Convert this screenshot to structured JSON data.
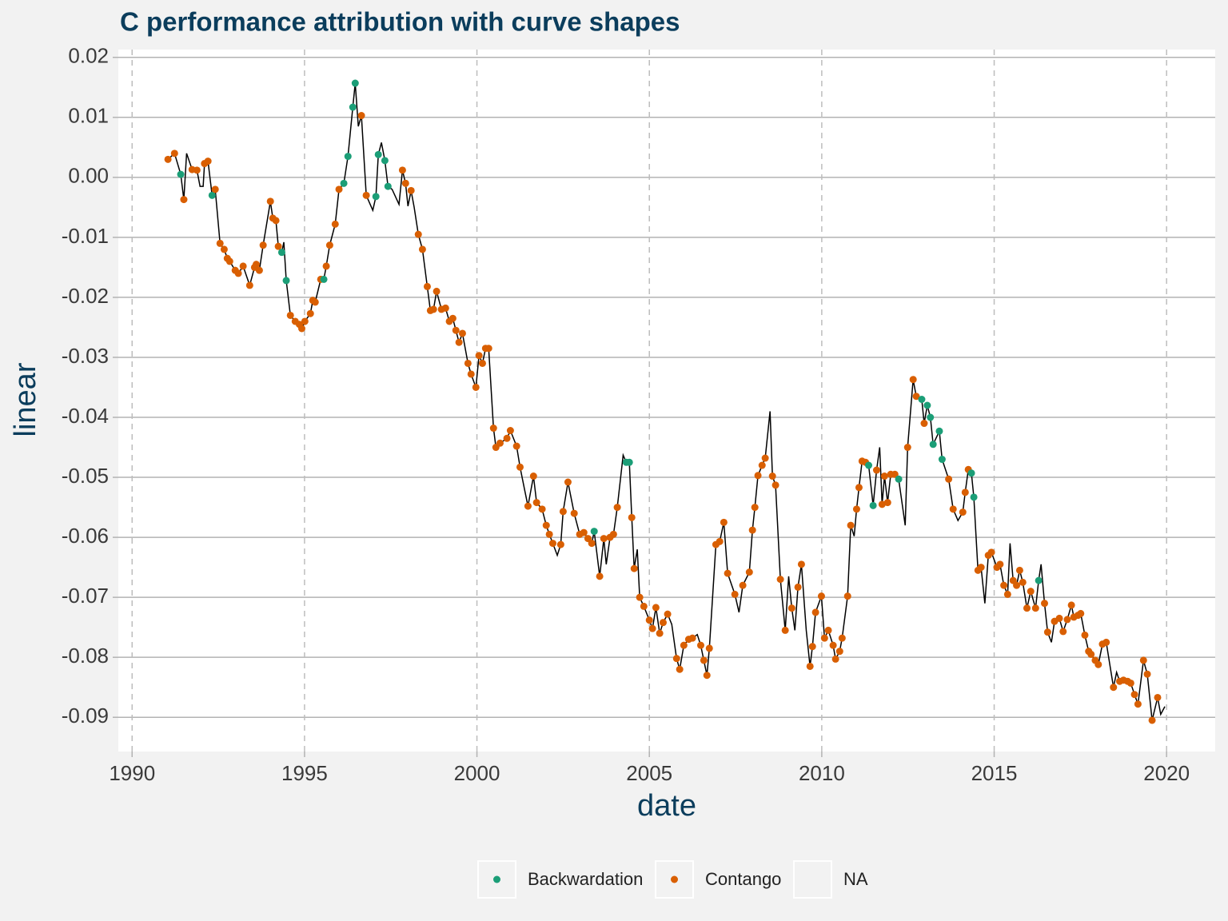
{
  "chart_data": {
    "type": "line",
    "title": "C  performance attribution with curve shapes",
    "x_label": "date",
    "y_label": "linear",
    "line_color": "#000000",
    "x": [
      1991.04,
      1991.23,
      1991.41,
      1991.5,
      1991.58,
      1991.74,
      1991.88,
      1991.97,
      1992.06,
      1992.1,
      1992.2,
      1992.32,
      1992.41,
      1992.55,
      1992.67,
      1992.76,
      1992.83,
      1992.99,
      1993.08,
      1993.22,
      1993.41,
      1993.55,
      1993.6,
      1993.69,
      1993.8,
      1994.01,
      1994.08,
      1994.17,
      1994.24,
      1994.34,
      1994.4,
      1994.47,
      1994.59,
      1994.73,
      1994.85,
      1994.92,
      1995.01,
      1995.17,
      1995.24,
      1995.31,
      1995.47,
      1995.56,
      1995.63,
      1995.73,
      1995.89,
      1996.0,
      1996.14,
      1996.26,
      1996.4,
      1996.47,
      1996.56,
      1996.65,
      1996.79,
      1996.98,
      1997.07,
      1997.14,
      1997.23,
      1997.33,
      1997.42,
      1997.54,
      1997.74,
      1997.84,
      1997.93,
      1998.0,
      1998.09,
      1998.18,
      1998.3,
      1998.42,
      1998.56,
      1998.65,
      1998.74,
      1998.83,
      1998.97,
      1999.09,
      1999.2,
      1999.3,
      1999.39,
      1999.48,
      1999.58,
      1999.74,
      1999.83,
      1999.97,
      2000.06,
      2000.16,
      2000.25,
      2000.34,
      2000.48,
      2000.55,
      2000.67,
      2000.87,
      2000.97,
      2001.15,
      2001.25,
      2001.38,
      2001.48,
      2001.64,
      2001.73,
      2001.89,
      2002.01,
      2002.1,
      2002.2,
      2002.33,
      2002.43,
      2002.5,
      2002.64,
      2002.82,
      2002.98,
      2003.1,
      2003.22,
      2003.33,
      2003.4,
      2003.56,
      2003.68,
      2003.75,
      2003.86,
      2003.96,
      2004.07,
      2004.24,
      2004.33,
      2004.42,
      2004.49,
      2004.56,
      2004.65,
      2004.72,
      2004.84,
      2005.0,
      2005.09,
      2005.19,
      2005.3,
      2005.4,
      2005.53,
      2005.65,
      2005.79,
      2005.88,
      2006.0,
      2006.14,
      2006.25,
      2006.39,
      2006.49,
      2006.58,
      2006.67,
      2006.74,
      2006.93,
      2007.04,
      2007.16,
      2007.27,
      2007.48,
      2007.6,
      2007.71,
      2007.9,
      2007.99,
      2008.06,
      2008.15,
      2008.27,
      2008.36,
      2008.5,
      2008.57,
      2008.66,
      2008.8,
      2008.94,
      2009.04,
      2009.13,
      2009.22,
      2009.31,
      2009.41,
      2009.55,
      2009.66,
      2009.73,
      2009.82,
      2009.99,
      2010.08,
      2010.19,
      2010.33,
      2010.4,
      2010.52,
      2010.59,
      2010.75,
      2010.84,
      2010.94,
      2011.01,
      2011.08,
      2011.17,
      2011.27,
      2011.36,
      2011.49,
      2011.59,
      2011.68,
      2011.75,
      2011.82,
      2011.91,
      2012.0,
      2012.12,
      2012.23,
      2012.42,
      2012.49,
      2012.65,
      2012.74,
      2012.9,
      2012.97,
      2013.06,
      2013.15,
      2013.23,
      2013.41,
      2013.49,
      2013.68,
      2013.81,
      2013.95,
      2014.09,
      2014.16,
      2014.25,
      2014.34,
      2014.41,
      2014.53,
      2014.62,
      2014.73,
      2014.83,
      2014.92,
      2015.08,
      2015.17,
      2015.28,
      2015.39,
      2015.46,
      2015.55,
      2015.65,
      2015.74,
      2015.83,
      2015.95,
      2016.06,
      2016.2,
      2016.29,
      2016.36,
      2016.46,
      2016.55,
      2016.66,
      2016.75,
      2016.89,
      2017.0,
      2017.12,
      2017.24,
      2017.31,
      2017.43,
      2017.51,
      2017.63,
      2017.74,
      2017.81,
      2017.93,
      2018.02,
      2018.14,
      2018.25,
      2018.46,
      2018.55,
      2018.64,
      2018.75,
      2018.87,
      2018.96,
      2019.07,
      2019.17,
      2019.33,
      2019.44,
      2019.58,
      2019.74,
      2019.83,
      2019.95
    ],
    "values": [
      0.003,
      0.004,
      0.0005,
      -0.0037,
      0.004,
      0.0013,
      0.0012,
      -0.0015,
      -0.0015,
      0.0023,
      0.0027,
      -0.003,
      -0.002,
      -0.011,
      -0.012,
      -0.0135,
      -0.014,
      -0.0155,
      -0.016,
      -0.0148,
      -0.018,
      -0.015,
      -0.0145,
      -0.0155,
      -0.0113,
      -0.004,
      -0.0068,
      -0.0072,
      -0.0115,
      -0.0125,
      -0.0108,
      -0.0172,
      -0.023,
      -0.024,
      -0.0245,
      -0.0252,
      -0.024,
      -0.0227,
      -0.0205,
      -0.0208,
      -0.017,
      -0.017,
      -0.0148,
      -0.0113,
      -0.0078,
      -0.002,
      -0.001,
      0.0035,
      0.0117,
      0.0157,
      0.0085,
      0.0103,
      -0.003,
      -0.0055,
      -0.0032,
      0.0038,
      0.0058,
      0.0028,
      -0.0015,
      -0.002,
      -0.0045,
      0.0012,
      -0.001,
      -0.0048,
      -0.0022,
      -0.005,
      -0.0095,
      -0.012,
      -0.0182,
      -0.0222,
      -0.022,
      -0.019,
      -0.022,
      -0.0218,
      -0.024,
      -0.0235,
      -0.0255,
      -0.0275,
      -0.026,
      -0.031,
      -0.0328,
      -0.035,
      -0.0297,
      -0.031,
      -0.0285,
      -0.0285,
      -0.0418,
      -0.045,
      -0.0443,
      -0.0435,
      -0.0422,
      -0.0448,
      -0.0483,
      -0.052,
      -0.0548,
      -0.0498,
      -0.0542,
      -0.0553,
      -0.058,
      -0.0595,
      -0.061,
      -0.063,
      -0.0612,
      -0.0557,
      -0.0508,
      -0.056,
      -0.0595,
      -0.0592,
      -0.0602,
      -0.061,
      -0.059,
      -0.0665,
      -0.0602,
      -0.0645,
      -0.06,
      -0.0595,
      -0.055,
      -0.0463,
      -0.0475,
      -0.0475,
      -0.0567,
      -0.0652,
      -0.062,
      -0.07,
      -0.0715,
      -0.0738,
      -0.0752,
      -0.0717,
      -0.076,
      -0.0742,
      -0.0728,
      -0.0745,
      -0.0802,
      -0.082,
      -0.078,
      -0.077,
      -0.0768,
      -0.0762,
      -0.078,
      -0.0805,
      -0.083,
      -0.0785,
      -0.0612,
      -0.0607,
      -0.0575,
      -0.066,
      -0.0695,
      -0.0725,
      -0.068,
      -0.0658,
      -0.0588,
      -0.055,
      -0.0497,
      -0.048,
      -0.0468,
      -0.039,
      -0.0498,
      -0.0513,
      -0.067,
      -0.0755,
      -0.0665,
      -0.0718,
      -0.0755,
      -0.0683,
      -0.0645,
      -0.0755,
      -0.0815,
      -0.0782,
      -0.0725,
      -0.0698,
      -0.0768,
      -0.0755,
      -0.078,
      -0.0803,
      -0.079,
      -0.0768,
      -0.0698,
      -0.058,
      -0.0598,
      -0.0553,
      -0.0517,
      -0.0473,
      -0.0475,
      -0.048,
      -0.0547,
      -0.0488,
      -0.045,
      -0.0545,
      -0.0498,
      -0.0542,
      -0.0495,
      -0.0495,
      -0.0503,
      -0.058,
      -0.045,
      -0.0337,
      -0.0365,
      -0.037,
      -0.041,
      -0.038,
      -0.04,
      -0.0445,
      -0.0423,
      -0.047,
      -0.0503,
      -0.0553,
      -0.0572,
      -0.0558,
      -0.0525,
      -0.0487,
      -0.0493,
      -0.0533,
      -0.0655,
      -0.065,
      -0.071,
      -0.063,
      -0.0625,
      -0.065,
      -0.0645,
      -0.068,
      -0.0695,
      -0.061,
      -0.0672,
      -0.068,
      -0.0655,
      -0.0675,
      -0.0718,
      -0.069,
      -0.0718,
      -0.0672,
      -0.0645,
      -0.071,
      -0.0758,
      -0.0775,
      -0.074,
      -0.0735,
      -0.0757,
      -0.0737,
      -0.0713,
      -0.0733,
      -0.073,
      -0.0727,
      -0.0763,
      -0.079,
      -0.0795,
      -0.0805,
      -0.0812,
      -0.0778,
      -0.0775,
      -0.085,
      -0.0825,
      -0.084,
      -0.0838,
      -0.084,
      -0.0843,
      -0.0862,
      -0.0878,
      -0.0805,
      -0.0828,
      -0.0905,
      -0.0867,
      -0.0895,
      -0.0882
    ],
    "shape": [
      "Contango",
      "Contango",
      "Backwardation",
      "Contango",
      "NA",
      "Contango",
      "Contango",
      "NA",
      "NA",
      "Contango",
      "Contango",
      "Backwardation",
      "Contango",
      "Contango",
      "Contango",
      "Contango",
      "Contango",
      "Contango",
      "Contango",
      "Contango",
      "Contango",
      "Contango",
      "Contango",
      "Contango",
      "Contango",
      "Contango",
      "Contango",
      "Contango",
      "Contango",
      "Backwardation",
      "NA",
      "Backwardation",
      "Contango",
      "Contango",
      "Contango",
      "Contango",
      "Contango",
      "Contango",
      "Contango",
      "Contango",
      "Contango",
      "Backwardation",
      "Contango",
      "Contango",
      "Contango",
      "Contango",
      "Backwardation",
      "Backwardation",
      "Backwardation",
      "Backwardation",
      "NA",
      "Contango",
      "Contango",
      "NA",
      "Backwardation",
      "Backwardation",
      "NA",
      "Backwardation",
      "Backwardation",
      "NA",
      "NA",
      "Contango",
      "Contango",
      "NA",
      "Contango",
      "NA",
      "Contango",
      "Contango",
      "Contango",
      "Contango",
      "Contango",
      "Contango",
      "Contango",
      "Contango",
      "Contango",
      "Contango",
      "Contango",
      "Contango",
      "Contango",
      "Contango",
      "Contango",
      "Contango",
      "Contango",
      "Contango",
      "Contango",
      "Contango",
      "Contango",
      "Contango",
      "Contango",
      "Contango",
      "Contango",
      "Contango",
      "Contango",
      "NA",
      "Contango",
      "Contango",
      "Contango",
      "Contango",
      "Contango",
      "Contango",
      "Contango",
      "NA",
      "Contango",
      "Contango",
      "Contango",
      "Contango",
      "Contango",
      "Contango",
      "Contango",
      "Contango",
      "Backwardation",
      "Contango",
      "Contango",
      "NA",
      "Contango",
      "Contango",
      "Contango",
      "NA",
      "Backwardation",
      "Backwardation",
      "Contango",
      "Contango",
      "NA",
      "Contango",
      "Contango",
      "Contango",
      "Contango",
      "Contango",
      "Contango",
      "Contango",
      "Contango",
      "NA",
      "Contango",
      "Contango",
      "Contango",
      "Contango",
      "Contango",
      "NA",
      "Contango",
      "Contango",
      "Contango",
      "Contango",
      "Contango",
      "Contango",
      "Contango",
      "Contango",
      "Contango",
      "NA",
      "Contango",
      "Contango",
      "Contango",
      "Contango",
      "Contango",
      "Contango",
      "Contango",
      "NA",
      "Contango",
      "Contango",
      "Contango",
      "Contango",
      "NA",
      "Contango",
      "NA",
      "Contango",
      "Contango",
      "NA",
      "Contango",
      "Contango",
      "Contango",
      "Contango",
      "Contango",
      "Contango",
      "Contango",
      "Contango",
      "Contango",
      "Contango",
      "Contango",
      "Contango",
      "NA",
      "Contango",
      "Contango",
      "Contango",
      "Contango",
      "Backwardation",
      "Backwardation",
      "Contango",
      "NA",
      "Contango",
      "Contango",
      "Contango",
      "Contango",
      "Contango",
      "Backwardation",
      "NA",
      "Contango",
      "Contango",
      "Contango",
      "Backwardation",
      "Contango",
      "Backwardation",
      "Backwardation",
      "Backwardation",
      "Backwardation",
      "Backwardation",
      "Contango",
      "Contango",
      "NA",
      "Contango",
      "Contango",
      "Contango",
      "Backwardation",
      "Backwardation",
      "Contango",
      "Contango",
      "NA",
      "Contango",
      "Contango",
      "Contango",
      "Contango",
      "Contango",
      "Contango",
      "NA",
      "Contango",
      "Contango",
      "Contango",
      "Contango",
      "Contango",
      "Contango",
      "Contango",
      "Backwardation",
      "NA",
      "Contango",
      "Contango",
      "NA",
      "Contango",
      "Contango",
      "Contango",
      "Contango",
      "Contango",
      "Contango",
      "Contango",
      "Contango",
      "Contango",
      "Contango",
      "Contango",
      "Contango",
      "Contango",
      "Contango",
      "Contango",
      "Contango",
      "NA",
      "Contango",
      "Contango",
      "Contango",
      "Contango",
      "Contango",
      "Contango",
      "Contango",
      "Contango",
      "Contango",
      "Contango",
      "NA",
      "NA"
    ],
    "series": [
      {
        "name": "Backwardation",
        "color": "#1b9e77"
      },
      {
        "name": "Contango",
        "color": "#d95f02"
      },
      {
        "name": "NA",
        "color": null
      }
    ],
    "xlim": [
      1989.6,
      2021.41
    ],
    "ylim": [
      -0.0957,
      0.0213
    ],
    "xticks": [
      1990,
      1995,
      2000,
      2005,
      2010,
      2015,
      2020
    ],
    "yticks": [
      0.02,
      0.01,
      {
        "value": 0,
        "label": "0.00"
      },
      -0.01,
      -0.02,
      -0.03,
      -0.04,
      -0.05,
      -0.06,
      -0.07,
      -0.08,
      -0.09
    ],
    "grid": true,
    "legend_position": "bottom"
  }
}
